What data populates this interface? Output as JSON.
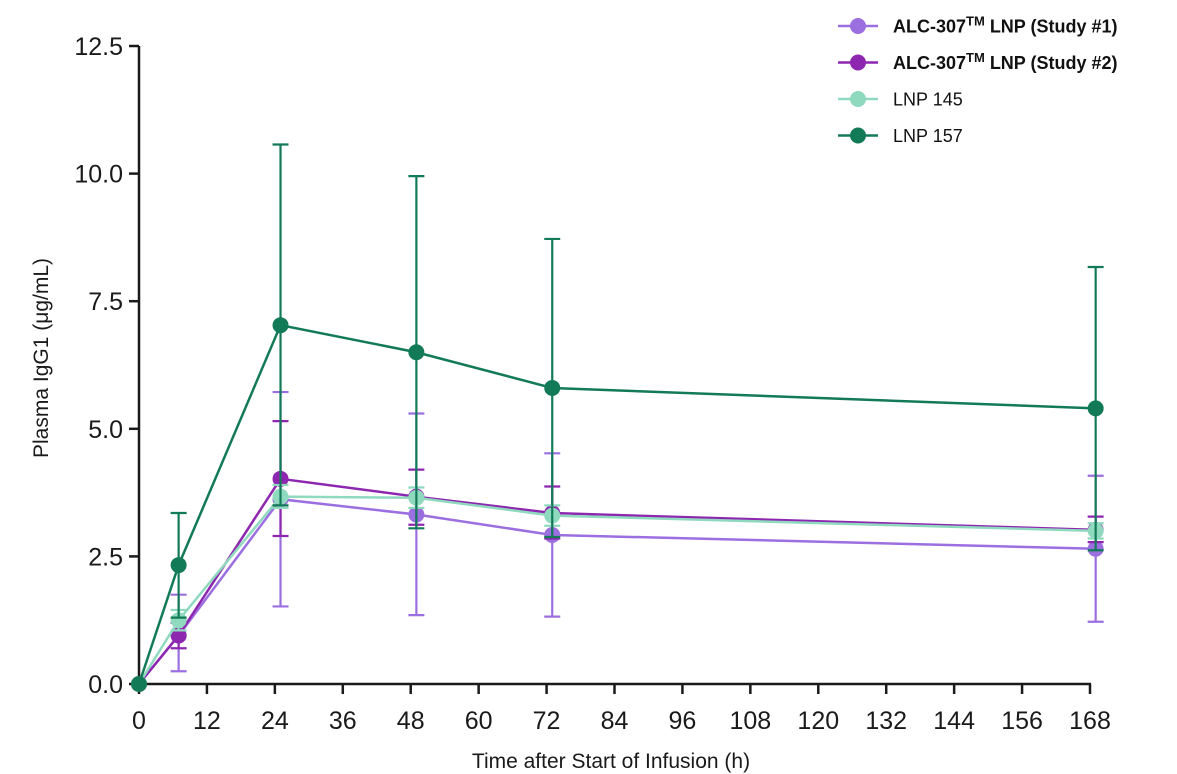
{
  "chart_data": {
    "type": "line",
    "xlabel": "Time after Start of Infusion (h)",
    "ylabel": "Plasma IgG1 (μg/mL)",
    "xlim": [
      0,
      168
    ],
    "ylim": [
      0,
      12.5
    ],
    "x_ticks": [
      "0",
      "12",
      "24",
      "36",
      "48",
      "60",
      "72",
      "84",
      "96",
      "108",
      "120",
      "132",
      "144",
      "156",
      "168"
    ],
    "y_ticks": [
      "0.0",
      "2.5",
      "5.0",
      "7.5",
      "10.0",
      "12.5"
    ],
    "grid": false,
    "legend_position": "top-right",
    "series": [
      {
        "name": "ALC-307",
        "name_superscript": "TM",
        "name_suffix": " LNP (Study #1)",
        "color": "#9b6fe0",
        "legend_bold": true,
        "points": [
          {
            "x": 0,
            "y": 0.0,
            "err_low": 0.0,
            "err_high": 0.0
          },
          {
            "x": 7,
            "y": 0.95,
            "err_low": 0.25,
            "err_high": 1.75
          },
          {
            "x": 25,
            "y": 3.62,
            "err_low": 1.52,
            "err_high": 5.72
          },
          {
            "x": 49,
            "y": 3.32,
            "err_low": 1.35,
            "err_high": 5.3
          },
          {
            "x": 73,
            "y": 2.92,
            "err_low": 1.32,
            "err_high": 4.52
          },
          {
            "x": 169,
            "y": 2.65,
            "err_low": 1.22,
            "err_high": 4.08
          }
        ]
      },
      {
        "name": "ALC-307",
        "name_superscript": "TM",
        "name_suffix": " LNP (Study #2)",
        "color": "#8e27b0",
        "legend_bold": true,
        "points": [
          {
            "x": 0,
            "y": 0.0,
            "err_low": 0.0,
            "err_high": 0.0
          },
          {
            "x": 7,
            "y": 0.95,
            "err_low": 0.7,
            "err_high": 1.2
          },
          {
            "x": 25,
            "y": 4.02,
            "err_low": 2.9,
            "err_high": 5.15
          },
          {
            "x": 49,
            "y": 3.67,
            "err_low": 3.12,
            "err_high": 4.2
          },
          {
            "x": 73,
            "y": 3.35,
            "err_low": 2.85,
            "err_high": 3.87
          },
          {
            "x": 169,
            "y": 3.02,
            "err_low": 2.78,
            "err_high": 3.28
          }
        ]
      },
      {
        "name": "LNP 145",
        "color": "#8fd9bf",
        "legend_bold": false,
        "points": [
          {
            "x": 0,
            "y": 0.0,
            "err_low": 0.0,
            "err_high": 0.0
          },
          {
            "x": 7,
            "y": 1.25,
            "err_low": 1.05,
            "err_high": 1.45
          },
          {
            "x": 25,
            "y": 3.67,
            "err_low": 3.45,
            "err_high": 3.9
          },
          {
            "x": 49,
            "y": 3.65,
            "err_low": 3.45,
            "err_high": 3.85
          },
          {
            "x": 73,
            "y": 3.3,
            "err_low": 3.1,
            "err_high": 3.5
          },
          {
            "x": 169,
            "y": 3.0,
            "err_low": 2.85,
            "err_high": 3.15
          }
        ]
      },
      {
        "name": "LNP 157",
        "color": "#137a58",
        "legend_bold": false,
        "points": [
          {
            "x": 0,
            "y": 0.0,
            "err_low": 0.0,
            "err_high": 0.0
          },
          {
            "x": 7,
            "y": 2.33,
            "err_low": 1.3,
            "err_high": 3.35
          },
          {
            "x": 25,
            "y": 7.03,
            "err_low": 3.5,
            "err_high": 10.57
          },
          {
            "x": 49,
            "y": 6.5,
            "err_low": 3.05,
            "err_high": 9.95
          },
          {
            "x": 73,
            "y": 5.8,
            "err_low": 2.88,
            "err_high": 8.72
          },
          {
            "x": 169,
            "y": 5.4,
            "err_low": 2.62,
            "err_high": 8.17
          }
        ]
      }
    ]
  }
}
